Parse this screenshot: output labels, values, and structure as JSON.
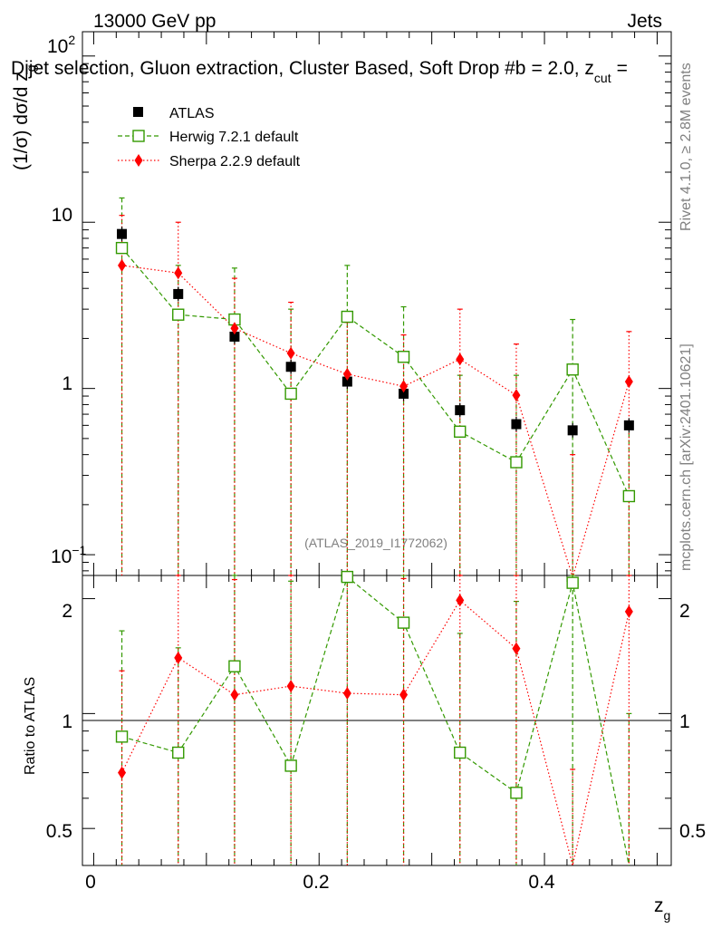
{
  "chart_data": {
    "type": "scatter",
    "header_left": "13000 GeV pp",
    "header_right": "Jets",
    "title": "Dijet selection, Gluon extraction, Cluster Based, Soft Drop #b",
    "title_extra": "= 2.0, z",
    "title_sub": "cut",
    "title_end": "=",
    "ylabel": "(1/σ) dσ/d z",
    "ylabel_sub": "g",
    "xlabel": "z",
    "xlabel_sub": "g",
    "ratio_ylabel": "Ratio to ATLAS",
    "analysis_id": "(ATLAS_2019_I1772062)",
    "side_text_top": "Rivet 4.1.0, ≥ 2.8M events",
    "side_text_bottom": "mcplots.cern.ch [arXiv:2401.10621]",
    "xlim": [
      -0.01,
      0.5125
    ],
    "ylim": [
      0.075,
      140
    ],
    "ratio_ylim": [
      0.4,
      2.3
    ],
    "x_ticks": [
      0,
      0.2,
      0.4
    ],
    "x_tick_labels": [
      "0",
      "0.2",
      "0.4"
    ],
    "y_tick_labels": {
      "tenth_base": "10",
      "tenth_exp": "−1",
      "one": "1",
      "ten": "10",
      "hundred_base": "10",
      "hundred_exp": "2"
    },
    "ratio_ticks": [
      0.5,
      1,
      2
    ],
    "ratio_tick_labels": [
      "0.5",
      "1",
      "2"
    ],
    "x": [
      0.025,
      0.075,
      0.125,
      0.175,
      0.225,
      0.275,
      0.325,
      0.375,
      0.425,
      0.475
    ],
    "series": [
      {
        "name": "ATLAS",
        "color": "#000000",
        "marker": "filled-square",
        "values": [
          8.5,
          3.7,
          2.05,
          1.35,
          1.1,
          0.93,
          0.74,
          0.61,
          0.56,
          0.6
        ]
      },
      {
        "name": "Herwig 7.2.1 default",
        "color": "#339900",
        "marker": "open-square",
        "line": "dashed",
        "values": [
          7.0,
          2.78,
          2.6,
          0.93,
          2.7,
          1.55,
          0.55,
          0.36,
          1.3,
          0.225
        ],
        "err_hi": [
          14.0,
          5.5,
          5.3,
          3.0,
          5.5,
          3.1,
          1.2,
          1.2,
          2.6,
          0.6
        ],
        "ratio": [
          0.87,
          0.79,
          1.33,
          0.73,
          2.28,
          1.73,
          0.79,
          0.62,
          2.2,
          0.3
        ]
      },
      {
        "name": "Sherpa 2.2.9 default",
        "color": "#ff0000",
        "marker": "filled-diamond",
        "line": "dotted",
        "values": [
          5.5,
          4.95,
          2.3,
          1.63,
          1.22,
          1.03,
          1.5,
          0.91,
          0.07,
          1.1
        ],
        "err_hi": [
          11.0,
          10.0,
          4.6,
          3.3,
          2.5,
          2.1,
          3.0,
          1.85,
          0.4,
          2.2
        ],
        "ratio": [
          0.7,
          1.4,
          1.12,
          1.18,
          1.13,
          1.12,
          1.98,
          1.48,
          0.3,
          1.85
        ]
      }
    ]
  }
}
